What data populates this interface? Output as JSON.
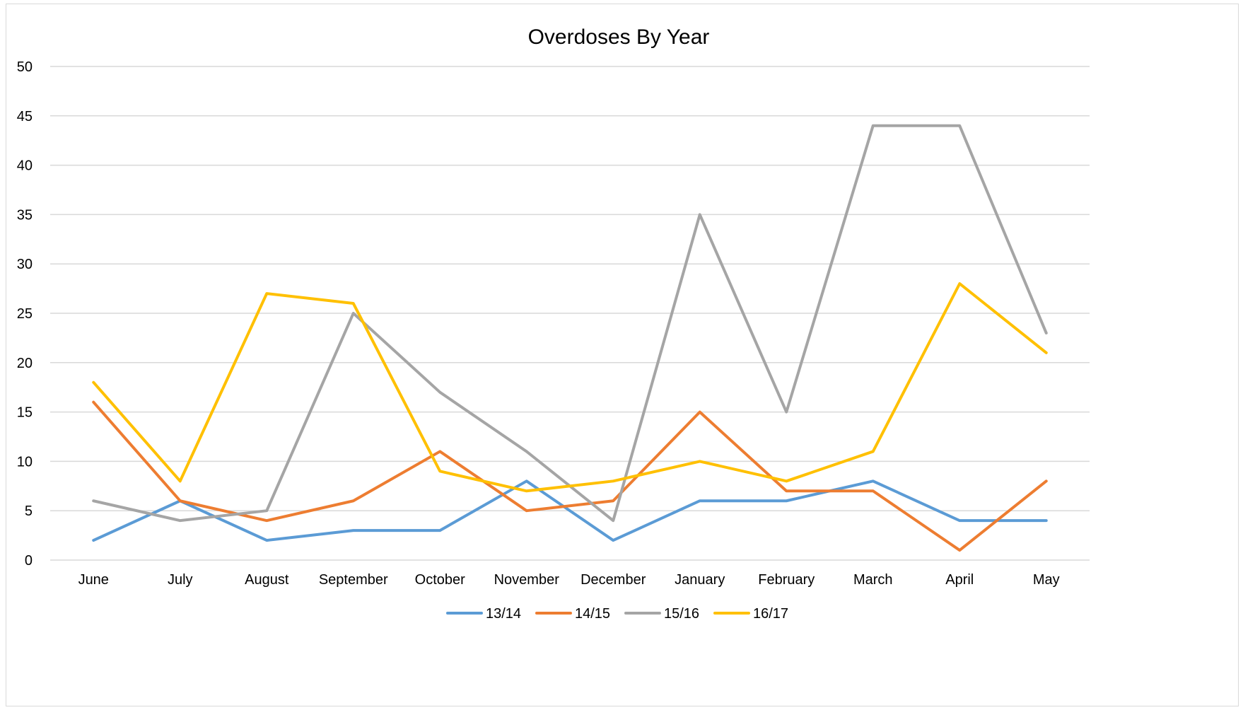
{
  "chart_data": {
    "type": "line",
    "title": "Overdoses By Year",
    "xlabel": "",
    "ylabel": "",
    "categories": [
      "June",
      "July",
      "August",
      "September",
      "October",
      "November",
      "December",
      "January",
      "February",
      "March",
      "April",
      "May"
    ],
    "ylim": [
      0,
      50
    ],
    "yticks": [
      0,
      5,
      10,
      15,
      20,
      25,
      30,
      35,
      40,
      45,
      50
    ],
    "grid": "horizontal",
    "legend_position": "bottom",
    "series": [
      {
        "name": "13/14",
        "color": "#5b9bd5",
        "values": [
          2,
          6,
          2,
          3,
          3,
          8,
          2,
          6,
          6,
          8,
          4,
          4
        ]
      },
      {
        "name": "14/15",
        "color": "#ed7d31",
        "values": [
          16,
          6,
          4,
          6,
          11,
          5,
          6,
          15,
          7,
          7,
          1,
          8
        ]
      },
      {
        "name": "15/16",
        "color": "#a5a5a5",
        "values": [
          6,
          4,
          5,
          25,
          17,
          11,
          4,
          35,
          15,
          44,
          44,
          23
        ]
      },
      {
        "name": "16/17",
        "color": "#ffc000",
        "values": [
          18,
          8,
          27,
          26,
          9,
          7,
          8,
          10,
          8,
          11,
          28,
          21
        ]
      }
    ]
  }
}
